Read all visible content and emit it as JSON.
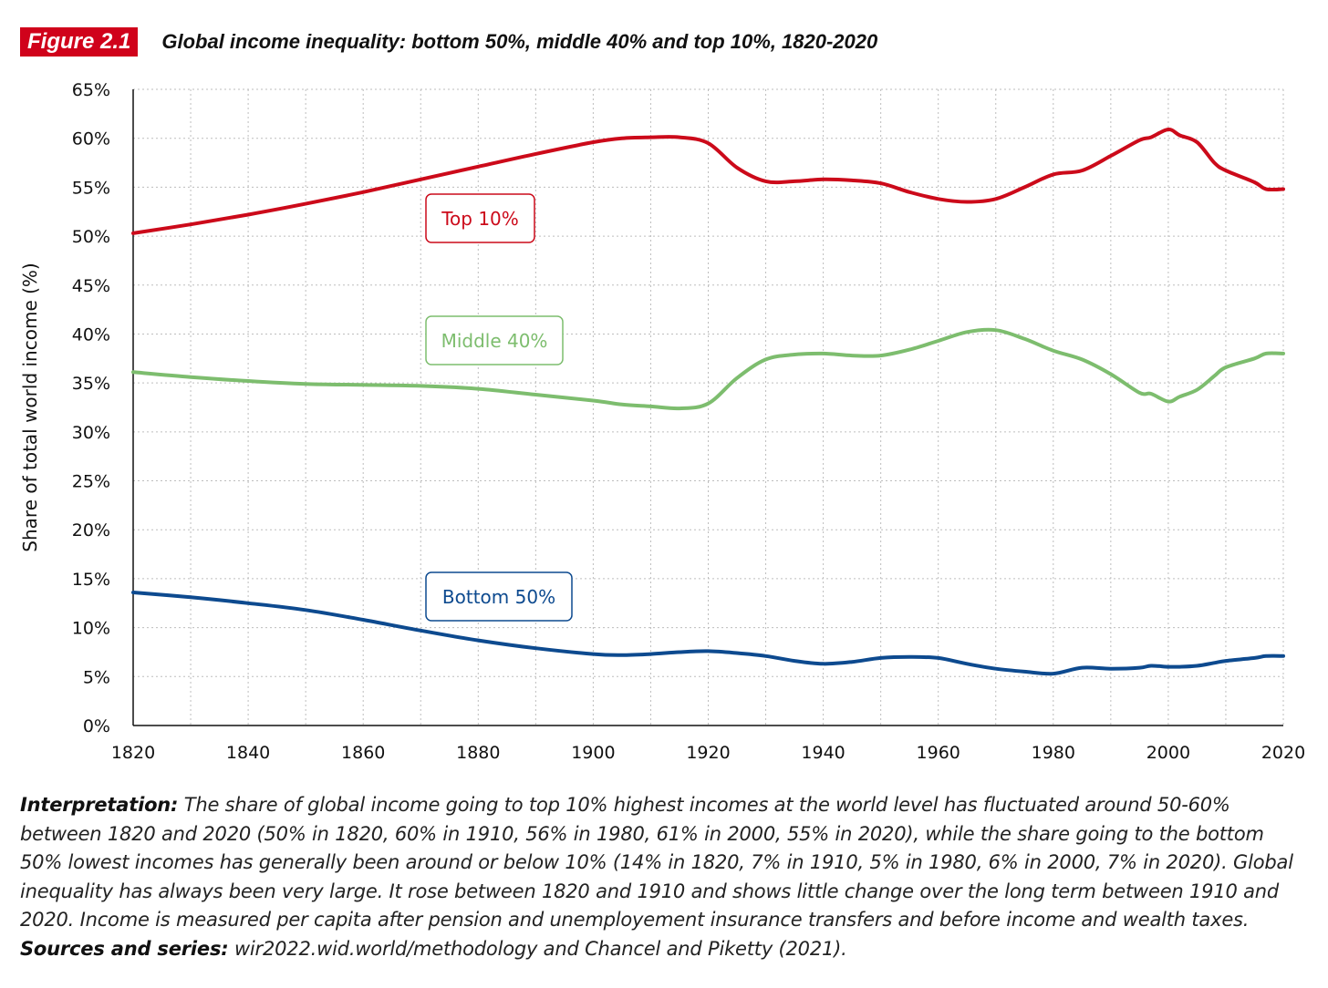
{
  "header": {
    "figure_tag": "Figure 2.1",
    "title": "Global income inequality: bottom 50%, middle 40% and top 10%, 1820-2020"
  },
  "colors": {
    "tag_bg": "#d0021b",
    "top10": "#cc0a1a",
    "middle40": "#7dbd6e",
    "bottom50": "#0d4a8f",
    "grid": "#bdbdbd"
  },
  "chart_data": {
    "type": "line",
    "ylabel": "Share of total world income (%)",
    "xlabel": "",
    "xlim": [
      1820,
      2020
    ],
    "ylim": [
      0,
      65
    ],
    "x_ticks": [
      "1820",
      "1840",
      "1860",
      "1880",
      "1900",
      "1920",
      "1940",
      "1960",
      "1980",
      "2000",
      "2020"
    ],
    "y_ticks": [
      "0%",
      "5%",
      "10%",
      "15%",
      "20%",
      "25%",
      "30%",
      "35%",
      "40%",
      "45%",
      "50%",
      "55%",
      "60%",
      "65%"
    ],
    "grid": true,
    "series": [
      {
        "name": "Top 10%",
        "color": "#cc0a1a",
        "x": [
          1820,
          1830,
          1840,
          1850,
          1860,
          1870,
          1880,
          1890,
          1900,
          1905,
          1910,
          1915,
          1920,
          1925,
          1930,
          1935,
          1940,
          1945,
          1950,
          1955,
          1960,
          1965,
          1970,
          1975,
          1980,
          1985,
          1990,
          1995,
          1997,
          2000,
          2002,
          2005,
          2008,
          2010,
          2015,
          2017,
          2020
        ],
        "y": [
          50.3,
          51.2,
          52.2,
          53.3,
          54.5,
          55.8,
          57.1,
          58.4,
          59.6,
          60.0,
          60.1,
          60.1,
          59.5,
          57.0,
          55.6,
          55.6,
          55.8,
          55.7,
          55.4,
          54.5,
          53.8,
          53.5,
          53.8,
          55.0,
          56.3,
          56.7,
          58.2,
          59.8,
          60.1,
          60.9,
          60.3,
          59.6,
          57.5,
          56.7,
          55.5,
          54.8,
          54.8
        ]
      },
      {
        "name": "Middle 40%",
        "color": "#7dbd6e",
        "x": [
          1820,
          1830,
          1840,
          1850,
          1860,
          1870,
          1880,
          1890,
          1900,
          1905,
          1910,
          1915,
          1920,
          1925,
          1930,
          1935,
          1940,
          1945,
          1950,
          1955,
          1960,
          1965,
          1970,
          1975,
          1980,
          1985,
          1990,
          1995,
          1997,
          2000,
          2002,
          2005,
          2008,
          2010,
          2015,
          2017,
          2020
        ],
        "y": [
          36.1,
          35.6,
          35.2,
          34.9,
          34.8,
          34.7,
          34.4,
          33.8,
          33.2,
          32.8,
          32.6,
          32.4,
          32.9,
          35.5,
          37.4,
          37.9,
          38.0,
          37.8,
          37.8,
          38.4,
          39.3,
          40.2,
          40.4,
          39.5,
          38.3,
          37.4,
          35.9,
          34.0,
          33.9,
          33.1,
          33.6,
          34.3,
          35.7,
          36.6,
          37.5,
          38.0,
          38.0
        ]
      },
      {
        "name": "Bottom 50%",
        "color": "#0d4a8f",
        "x": [
          1820,
          1830,
          1840,
          1850,
          1860,
          1870,
          1880,
          1890,
          1900,
          1905,
          1910,
          1915,
          1920,
          1925,
          1930,
          1935,
          1940,
          1945,
          1950,
          1955,
          1960,
          1965,
          1970,
          1975,
          1980,
          1985,
          1990,
          1995,
          1997,
          2000,
          2002,
          2005,
          2008,
          2010,
          2015,
          2017,
          2020
        ],
        "y": [
          13.6,
          13.1,
          12.5,
          11.8,
          10.8,
          9.7,
          8.7,
          7.9,
          7.3,
          7.2,
          7.3,
          7.5,
          7.6,
          7.4,
          7.1,
          6.6,
          6.3,
          6.5,
          6.9,
          7.0,
          6.9,
          6.3,
          5.8,
          5.5,
          5.3,
          5.9,
          5.8,
          5.9,
          6.1,
          6.0,
          6.0,
          6.1,
          6.4,
          6.6,
          6.9,
          7.1,
          7.1
        ]
      }
    ],
    "labels": {
      "top": "Top 10%",
      "middle": "Middle 40%",
      "bottom": "Bottom 50%"
    }
  },
  "caption": {
    "interp_label": "Interpretation:",
    "interp_text": " The share of global income going to top 10% highest incomes at the world level has fluctuated around 50-60% between 1820 and 2020 (50% in 1820, 60% in 1910, 56% in 1980, 61% in 2000, 55% in 2020), while the share going to the bottom 50% lowest incomes has generally been around or below 10% (14% in 1820, 7% in 1910, 5% in 1980, 6% in 2000, 7% in 2020). Global inequality has always been very large. It rose between 1820 and 1910 and shows little change over the long term between 1910 and 2020. Income is measured per capita after pension and unemployement insurance transfers and before income and wealth taxes.",
    "sources_label": "Sources and series:",
    "sources_text": " wir2022.wid.world/methodology and Chancel and Piketty (2021)."
  }
}
